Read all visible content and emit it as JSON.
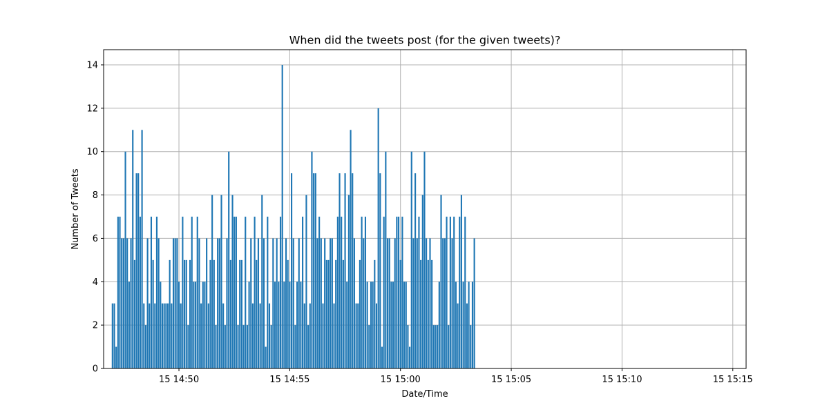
{
  "chart_data": {
    "type": "bar",
    "title": "When did the tweets post (for the given tweets)?",
    "xlabel": "Date/Time",
    "ylabel": "Number of Tweets",
    "bar_color": "#1f77b4",
    "grid": true,
    "x_unit": "minutes",
    "x_start": "14:47:00",
    "x_step_seconds": 5,
    "xlim": [
      "14:46:36",
      "15:15:36"
    ],
    "ylim": [
      0,
      14.7
    ],
    "x_ticks": [
      {
        "time": "14:50",
        "label": "15 14:50"
      },
      {
        "time": "14:55",
        "label": "15 14:55"
      },
      {
        "time": "15:00",
        "label": "15 15:00"
      },
      {
        "time": "15:05",
        "label": "15 15:05"
      },
      {
        "time": "15:10",
        "label": "15 15:10"
      },
      {
        "time": "15:15",
        "label": "15 15:15"
      }
    ],
    "y_ticks": [
      0,
      2,
      4,
      6,
      8,
      10,
      12,
      14
    ],
    "y_tick_labels": [
      "0",
      "2",
      "4",
      "6",
      "8",
      "10",
      "12",
      "14"
    ],
    "values": [
      3,
      3,
      1,
      7,
      7,
      6,
      6,
      10,
      6,
      4,
      6,
      11,
      5,
      9,
      9,
      7,
      11,
      3,
      2,
      6,
      3,
      7,
      5,
      3,
      7,
      6,
      4,
      3,
      3,
      3,
      3,
      5,
      3,
      6,
      6,
      6,
      4,
      3,
      7,
      5,
      5,
      2,
      5,
      7,
      4,
      4,
      7,
      6,
      3,
      4,
      4,
      6,
      3,
      5,
      8,
      5,
      2,
      6,
      6,
      8,
      3,
      2,
      6,
      10,
      5,
      8,
      7,
      7,
      2,
      5,
      5,
      2,
      7,
      2,
      4,
      6,
      3,
      7,
      5,
      6,
      3,
      8,
      6,
      1,
      7,
      3,
      2,
      6,
      4,
      6,
      4,
      7,
      14,
      4,
      6,
      5,
      4,
      9,
      6,
      2,
      4,
      6,
      4,
      7,
      3,
      8,
      2,
      3,
      10,
      9,
      9,
      6,
      7,
      6,
      3,
      6,
      5,
      5,
      6,
      6,
      3,
      5,
      7,
      9,
      7,
      5,
      9,
      4,
      8,
      11,
      9,
      6,
      3,
      3,
      5,
      7,
      6,
      7,
      4,
      2,
      4,
      4,
      5,
      3,
      12,
      9,
      1,
      7,
      10,
      6,
      6,
      4,
      4,
      6,
      7,
      7,
      5,
      7,
      4,
      4,
      2,
      1,
      10,
      6,
      9,
      6,
      7,
      5,
      8,
      10,
      6,
      5,
      6,
      5,
      2,
      2,
      2,
      4,
      8,
      6,
      6,
      7,
      2,
      7,
      6,
      7,
      4,
      3,
      7,
      8,
      4,
      7,
      3,
      4,
      2,
      4,
      6
    ]
  }
}
